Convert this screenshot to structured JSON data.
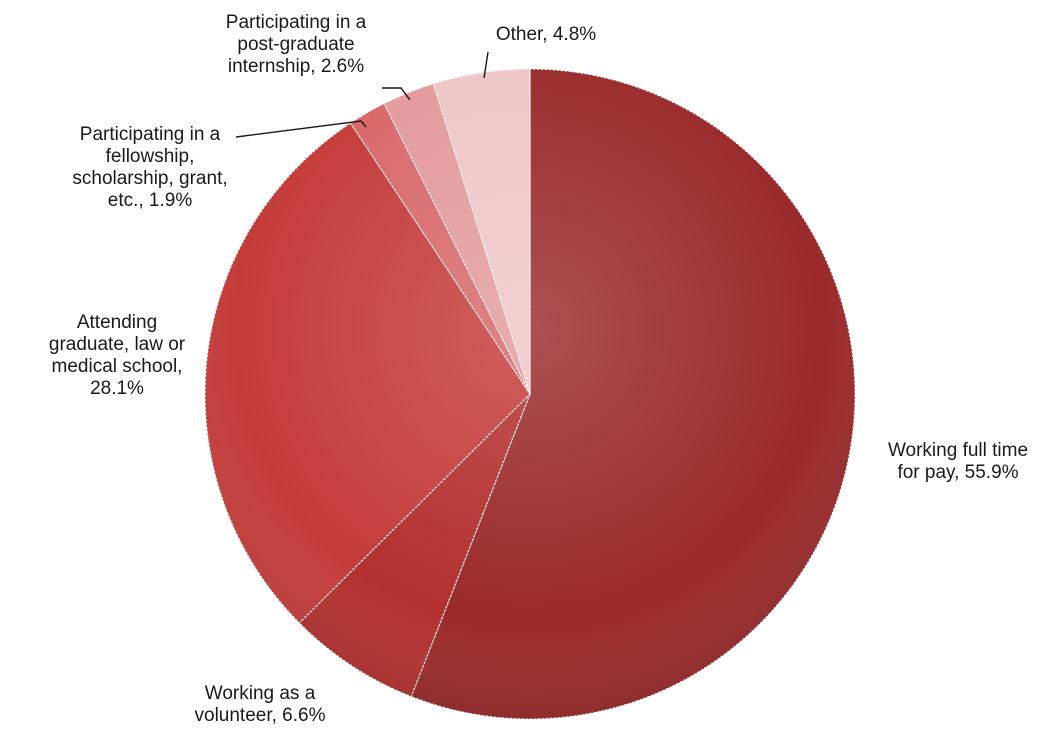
{
  "chart_data": {
    "type": "pie",
    "start_angle_deg": 0,
    "direction": "clockwise",
    "slices": [
      {
        "label": "Working full time for pay",
        "value": 55.9,
        "display": "Working full time for pay, 55.9%",
        "color": "#9a2a2b"
      },
      {
        "label": "Working as a volunteer",
        "value": 6.6,
        "display": "Working as a volunteer, 6.6%",
        "color": "#b3302f"
      },
      {
        "label": "Attending graduate, law or medical school",
        "value": 28.1,
        "display": "Attending graduate, law or medical school, 28.1%",
        "color": "#c43c3a"
      },
      {
        "label": "Participating in a fellowship, scholarship, grant, etc.",
        "value": 1.9,
        "display": "Participating in a fellowship, scholarship, grant, etc., 1.9%",
        "color": "#d8686a"
      },
      {
        "label": "Participating in a post-graduate internship",
        "value": 2.6,
        "display": "Participating in a post-graduate internship, 2.6%",
        "color": "#e39a9b"
      },
      {
        "label": "Other",
        "value": 4.8,
        "display": "Other, 4.8%",
        "color": "#efc6c6"
      }
    ],
    "label_lines": [
      [
        "Working full time",
        "for pay, 55.9%"
      ],
      [
        "Working as a",
        "volunteer,  6.6%"
      ],
      [
        "Attending",
        "graduate,   law or",
        "medical school,",
        "28.1%"
      ],
      [
        "Participating in a",
        "fellowship,",
        "scholarship, grant,",
        "etc., 1.9%"
      ],
      [
        "Participating in a",
        "post-graduate",
        "internship, 2.6%"
      ],
      [
        "Other, 4.8%"
      ]
    ]
  }
}
